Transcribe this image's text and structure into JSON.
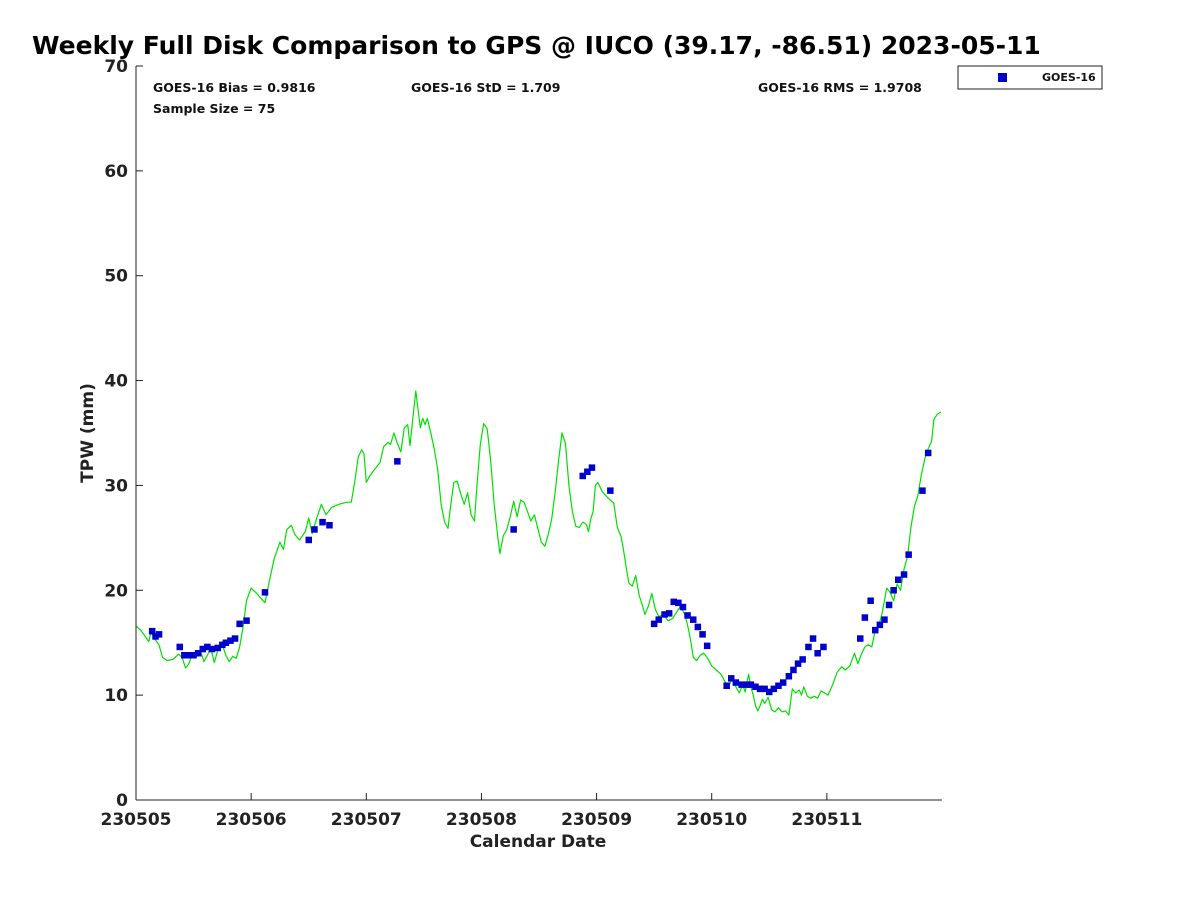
{
  "chart_data": {
    "type": "scatter",
    "title": "Weekly Full Disk Comparison to GPS @ IUCO (39.17, -86.51) 2023-05-11",
    "xlabel": "Calendar Date",
    "ylabel": "TPW (mm)",
    "xlim": [
      0,
      7
    ],
    "ylim": [
      0,
      70
    ],
    "x_ticks": [
      {
        "value": 0,
        "label": "230505"
      },
      {
        "value": 1,
        "label": "230506"
      },
      {
        "value": 2,
        "label": "230507"
      },
      {
        "value": 3,
        "label": "230508"
      },
      {
        "value": 4,
        "label": "230509"
      },
      {
        "value": 5,
        "label": "230510"
      },
      {
        "value": 6,
        "label": "230511"
      }
    ],
    "y_ticks": [
      0,
      10,
      20,
      30,
      40,
      50,
      60,
      70
    ],
    "stats": {
      "bias": "GOES-16 Bias = 0.9816",
      "std": "GOES-16 StD = 1.709",
      "rms": "GOES-16 RMS = 1.9708",
      "sample_size": "Sample Size = 75"
    },
    "legend": {
      "placement": "outside-top-right",
      "entries": [
        "GOES-16"
      ]
    },
    "series": [
      {
        "name": "GOES-16",
        "kind": "markers",
        "color": "#0000cc",
        "points": [
          [
            0.14,
            16.1
          ],
          [
            0.17,
            15.6
          ],
          [
            0.2,
            15.8
          ],
          [
            0.38,
            14.6
          ],
          [
            0.42,
            13.8
          ],
          [
            0.46,
            13.8
          ],
          [
            0.5,
            13.8
          ],
          [
            0.54,
            14.0
          ],
          [
            0.58,
            14.4
          ],
          [
            0.62,
            14.6
          ],
          [
            0.66,
            14.4
          ],
          [
            0.71,
            14.5
          ],
          [
            0.75,
            14.8
          ],
          [
            0.78,
            15.0
          ],
          [
            0.82,
            15.2
          ],
          [
            0.86,
            15.4
          ],
          [
            0.9,
            16.8
          ],
          [
            0.96,
            17.1
          ],
          [
            1.12,
            19.8
          ],
          [
            1.5,
            24.8
          ],
          [
            1.55,
            25.8
          ],
          [
            1.62,
            26.5
          ],
          [
            1.68,
            26.2
          ],
          [
            2.27,
            32.3
          ],
          [
            3.28,
            25.8
          ],
          [
            3.88,
            30.9
          ],
          [
            3.92,
            31.3
          ],
          [
            3.96,
            31.7
          ],
          [
            4.12,
            29.5
          ],
          [
            4.5,
            16.8
          ],
          [
            4.54,
            17.2
          ],
          [
            4.59,
            17.7
          ],
          [
            4.63,
            17.8
          ],
          [
            4.67,
            18.9
          ],
          [
            4.71,
            18.8
          ],
          [
            4.75,
            18.4
          ],
          [
            4.79,
            17.6
          ],
          [
            4.84,
            17.2
          ],
          [
            4.88,
            16.5
          ],
          [
            4.92,
            15.8
          ],
          [
            4.96,
            14.7
          ],
          [
            5.13,
            10.9
          ],
          [
            5.17,
            11.6
          ],
          [
            5.21,
            11.2
          ],
          [
            5.26,
            11.0
          ],
          [
            5.3,
            11.0
          ],
          [
            5.34,
            11.0
          ],
          [
            5.38,
            10.8
          ],
          [
            5.42,
            10.6
          ],
          [
            5.46,
            10.6
          ],
          [
            5.5,
            10.3
          ],
          [
            5.54,
            10.6
          ],
          [
            5.58,
            10.9
          ],
          [
            5.62,
            11.2
          ],
          [
            5.67,
            11.8
          ],
          [
            5.71,
            12.4
          ],
          [
            5.75,
            13.0
          ],
          [
            5.79,
            13.4
          ],
          [
            5.84,
            14.6
          ],
          [
            5.88,
            15.4
          ],
          [
            5.92,
            14.0
          ],
          [
            5.97,
            14.6
          ],
          [
            6.29,
            15.4
          ],
          [
            6.33,
            17.4
          ],
          [
            6.38,
            19.0
          ],
          [
            6.42,
            16.2
          ],
          [
            6.46,
            16.7
          ],
          [
            6.5,
            17.2
          ],
          [
            6.54,
            18.6
          ],
          [
            6.58,
            20.0
          ],
          [
            6.62,
            21.0
          ],
          [
            6.67,
            21.5
          ],
          [
            6.71,
            23.4
          ],
          [
            6.83,
            29.5
          ],
          [
            6.88,
            33.1
          ]
        ]
      },
      {
        "name": "GPS",
        "kind": "line",
        "color": "#00e000",
        "points": [
          [
            0.0,
            16.6
          ],
          [
            0.04,
            16.2
          ],
          [
            0.08,
            15.6
          ],
          [
            0.11,
            15.1
          ],
          [
            0.13,
            16.0
          ],
          [
            0.16,
            15.4
          ],
          [
            0.2,
            14.8
          ],
          [
            0.23,
            13.6
          ],
          [
            0.27,
            13.3
          ],
          [
            0.32,
            13.4
          ],
          [
            0.37,
            13.9
          ],
          [
            0.4,
            13.6
          ],
          [
            0.43,
            12.6
          ],
          [
            0.46,
            13.0
          ],
          [
            0.49,
            14.0
          ],
          [
            0.52,
            13.8
          ],
          [
            0.56,
            14.2
          ],
          [
            0.59,
            13.2
          ],
          [
            0.62,
            13.8
          ],
          [
            0.65,
            14.5
          ],
          [
            0.68,
            13.1
          ],
          [
            0.71,
            14.3
          ],
          [
            0.75,
            14.8
          ],
          [
            0.78,
            13.8
          ],
          [
            0.81,
            13.2
          ],
          [
            0.84,
            13.7
          ],
          [
            0.87,
            13.5
          ],
          [
            0.9,
            14.6
          ],
          [
            0.93,
            16.5
          ],
          [
            0.96,
            19.0
          ],
          [
            1.0,
            20.2
          ],
          [
            1.04,
            19.8
          ],
          [
            1.08,
            19.3
          ],
          [
            1.12,
            18.8
          ],
          [
            1.16,
            21.0
          ],
          [
            1.2,
            23.0
          ],
          [
            1.25,
            24.6
          ],
          [
            1.28,
            23.9
          ],
          [
            1.31,
            25.8
          ],
          [
            1.35,
            26.2
          ],
          [
            1.38,
            25.3
          ],
          [
            1.42,
            24.8
          ],
          [
            1.47,
            25.6
          ],
          [
            1.5,
            26.9
          ],
          [
            1.53,
            25.4
          ],
          [
            1.57,
            26.9
          ],
          [
            1.61,
            28.2
          ],
          [
            1.65,
            27.2
          ],
          [
            1.7,
            27.9
          ],
          [
            1.76,
            28.2
          ],
          [
            1.83,
            28.4
          ],
          [
            1.87,
            28.4
          ],
          [
            1.9,
            30.4
          ],
          [
            1.93,
            32.7
          ],
          [
            1.96,
            33.4
          ],
          [
            1.98,
            33.0
          ],
          [
            2.0,
            30.3
          ],
          [
            2.03,
            30.9
          ],
          [
            2.07,
            31.5
          ],
          [
            2.12,
            32.2
          ],
          [
            2.15,
            33.7
          ],
          [
            2.19,
            34.1
          ],
          [
            2.21,
            33.9
          ],
          [
            2.24,
            35.0
          ],
          [
            2.27,
            34.0
          ],
          [
            2.3,
            33.2
          ],
          [
            2.33,
            35.5
          ],
          [
            2.36,
            35.8
          ],
          [
            2.38,
            33.8
          ],
          [
            2.41,
            37.0
          ],
          [
            2.43,
            39.0
          ],
          [
            2.45,
            37.2
          ],
          [
            2.47,
            35.5
          ],
          [
            2.49,
            36.4
          ],
          [
            2.51,
            35.8
          ],
          [
            2.53,
            36.4
          ],
          [
            2.56,
            35.0
          ],
          [
            2.59,
            33.5
          ],
          [
            2.62,
            31.5
          ],
          [
            2.65,
            28.2
          ],
          [
            2.68,
            26.5
          ],
          [
            2.71,
            25.9
          ],
          [
            2.73,
            27.8
          ],
          [
            2.76,
            30.3
          ],
          [
            2.79,
            30.4
          ],
          [
            2.82,
            29.2
          ],
          [
            2.85,
            28.2
          ],
          [
            2.88,
            29.3
          ],
          [
            2.91,
            27.2
          ],
          [
            2.94,
            26.6
          ],
          [
            2.96,
            29.8
          ],
          [
            2.99,
            33.9
          ],
          [
            3.02,
            35.9
          ],
          [
            3.05,
            35.4
          ],
          [
            3.08,
            32.4
          ],
          [
            3.11,
            28.3
          ],
          [
            3.14,
            25.3
          ],
          [
            3.16,
            23.5
          ],
          [
            3.19,
            25.2
          ],
          [
            3.22,
            25.8
          ],
          [
            3.25,
            27.0
          ],
          [
            3.28,
            28.5
          ],
          [
            3.31,
            27.0
          ],
          [
            3.34,
            28.6
          ],
          [
            3.37,
            28.4
          ],
          [
            3.4,
            27.5
          ],
          [
            3.43,
            26.6
          ],
          [
            3.46,
            27.2
          ],
          [
            3.49,
            25.9
          ],
          [
            3.52,
            24.6
          ],
          [
            3.55,
            24.2
          ],
          [
            3.58,
            25.3
          ],
          [
            3.61,
            26.8
          ],
          [
            3.64,
            29.3
          ],
          [
            3.67,
            32.4
          ],
          [
            3.7,
            35.0
          ],
          [
            3.73,
            34.0
          ],
          [
            3.76,
            30.0
          ],
          [
            3.79,
            27.5
          ],
          [
            3.82,
            26.1
          ],
          [
            3.85,
            26.0
          ],
          [
            3.88,
            26.5
          ],
          [
            3.91,
            26.3
          ],
          [
            3.93,
            25.6
          ],
          [
            3.95,
            26.8
          ],
          [
            3.97,
            27.5
          ],
          [
            3.99,
            30.0
          ],
          [
            4.01,
            30.3
          ],
          [
            4.05,
            29.4
          ],
          [
            4.1,
            28.8
          ],
          [
            4.15,
            28.3
          ],
          [
            4.18,
            26.0
          ],
          [
            4.21,
            25.2
          ],
          [
            4.23,
            24.1
          ],
          [
            4.26,
            22.0
          ],
          [
            4.28,
            20.7
          ],
          [
            4.31,
            20.4
          ],
          [
            4.34,
            21.4
          ],
          [
            4.37,
            19.5
          ],
          [
            4.4,
            18.5
          ],
          [
            4.42,
            17.7
          ],
          [
            4.45,
            18.5
          ],
          [
            4.48,
            19.7
          ],
          [
            4.51,
            18.2
          ],
          [
            4.54,
            17.5
          ],
          [
            4.58,
            17.7
          ],
          [
            4.62,
            17.1
          ],
          [
            4.66,
            17.3
          ],
          [
            4.7,
            18.0
          ],
          [
            4.73,
            18.5
          ],
          [
            4.77,
            17.6
          ],
          [
            4.8,
            16.2
          ],
          [
            4.82,
            15.0
          ],
          [
            4.84,
            13.6
          ],
          [
            4.87,
            13.3
          ],
          [
            4.9,
            13.8
          ],
          [
            4.93,
            14.0
          ],
          [
            4.96,
            13.6
          ],
          [
            5.0,
            12.8
          ],
          [
            5.04,
            12.4
          ],
          [
            5.08,
            12.0
          ],
          [
            5.12,
            11.2
          ],
          [
            5.15,
            10.9
          ],
          [
            5.18,
            11.6
          ],
          [
            5.21,
            10.8
          ],
          [
            5.24,
            10.2
          ],
          [
            5.27,
            11.0
          ],
          [
            5.29,
            10.3
          ],
          [
            5.32,
            12.0
          ],
          [
            5.34,
            10.8
          ],
          [
            5.36,
            10.0
          ],
          [
            5.38,
            9.0
          ],
          [
            5.4,
            8.5
          ],
          [
            5.42,
            9.0
          ],
          [
            5.44,
            9.6
          ],
          [
            5.46,
            9.2
          ],
          [
            5.49,
            9.8
          ],
          [
            5.52,
            8.6
          ],
          [
            5.55,
            8.4
          ],
          [
            5.58,
            8.8
          ],
          [
            5.61,
            8.4
          ],
          [
            5.64,
            8.5
          ],
          [
            5.67,
            8.1
          ],
          [
            5.7,
            10.6
          ],
          [
            5.73,
            10.2
          ],
          [
            5.76,
            10.5
          ],
          [
            5.78,
            10.0
          ],
          [
            5.8,
            10.8
          ],
          [
            5.83,
            9.9
          ],
          [
            5.86,
            9.7
          ],
          [
            5.89,
            9.9
          ],
          [
            5.92,
            9.7
          ],
          [
            5.95,
            10.4
          ],
          [
            5.98,
            10.2
          ],
          [
            6.01,
            10.0
          ],
          [
            6.05,
            11.0
          ],
          [
            6.09,
            12.2
          ],
          [
            6.13,
            12.7
          ],
          [
            6.16,
            12.4
          ],
          [
            6.2,
            12.8
          ],
          [
            6.24,
            14.0
          ],
          [
            6.27,
            13.0
          ],
          [
            6.3,
            13.9
          ],
          [
            6.33,
            14.6
          ],
          [
            6.36,
            14.8
          ],
          [
            6.39,
            14.6
          ],
          [
            6.42,
            16.2
          ],
          [
            6.45,
            16.6
          ],
          [
            6.48,
            17.8
          ],
          [
            6.52,
            20.2
          ],
          [
            6.55,
            19.8
          ],
          [
            6.58,
            19.0
          ],
          [
            6.61,
            20.6
          ],
          [
            6.64,
            20.0
          ],
          [
            6.67,
            22.0
          ],
          [
            6.7,
            23.2
          ],
          [
            6.73,
            26.0
          ],
          [
            6.76,
            28.0
          ],
          [
            6.79,
            29.0
          ],
          [
            6.82,
            31.0
          ],
          [
            6.85,
            32.5
          ],
          [
            6.88,
            33.5
          ],
          [
            6.91,
            34.2
          ],
          [
            6.93,
            36.3
          ],
          [
            6.96,
            36.8
          ],
          [
            6.99,
            37.0
          ]
        ]
      }
    ]
  }
}
